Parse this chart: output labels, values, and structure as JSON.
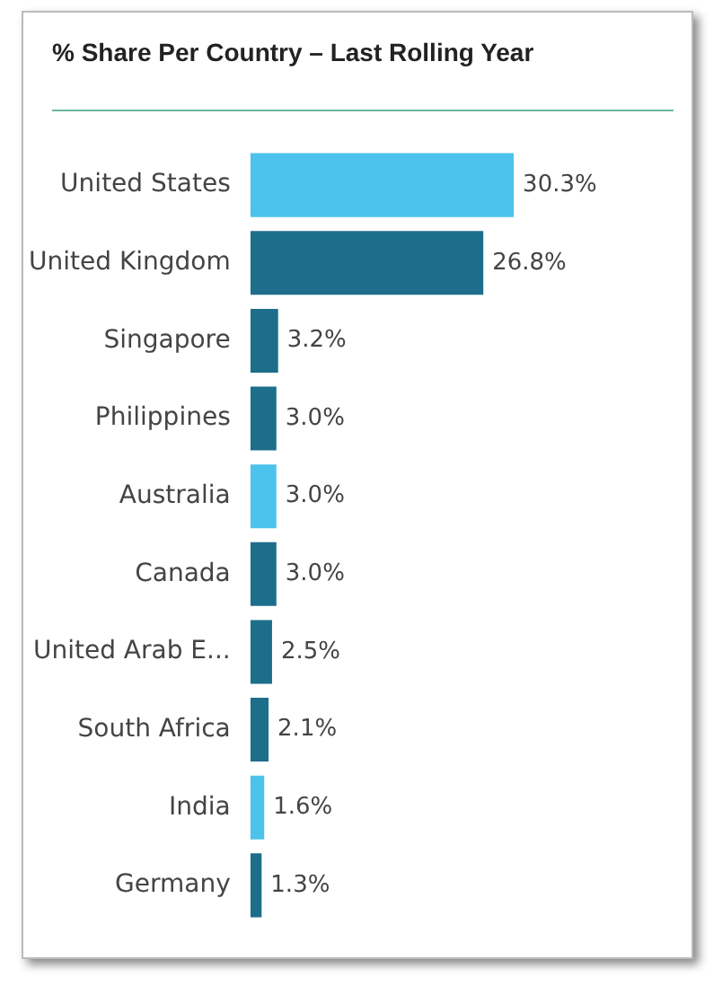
{
  "chart_data": {
    "type": "bar",
    "orientation": "horizontal",
    "title": "% Share Per Country – Last Rolling Year",
    "categories": [
      "United States",
      "United Kingdom",
      "Singapore",
      "Philippines",
      "Australia",
      "Canada",
      "United Arab E...",
      "South Africa",
      "India",
      "Germany"
    ],
    "values": [
      30.3,
      26.8,
      3.2,
      3.0,
      3.0,
      3.0,
      2.5,
      2.1,
      1.6,
      1.3
    ],
    "colors": [
      "#4cc3ec",
      "#1d6e8a",
      "#1d6e8a",
      "#1d6e8a",
      "#4cc3ec",
      "#1d6e8a",
      "#1d6e8a",
      "#1d6e8a",
      "#4cc3ec",
      "#1d6e8a"
    ],
    "value_labels": [
      "30.3%",
      "26.8%",
      "3.2%",
      "3.0%",
      "3.0%",
      "3.0%",
      "2.5%",
      "2.1%",
      "1.6%",
      "1.3%"
    ],
    "grid": false,
    "legend": false,
    "tick_labels": "y"
  }
}
